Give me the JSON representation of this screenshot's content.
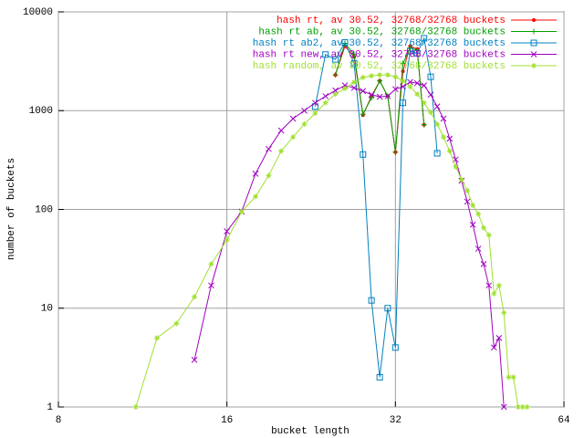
{
  "chart_data": {
    "type": "line",
    "xlabel": "bucket length",
    "ylabel": "number of buckets",
    "xscale": "log",
    "yscale": "log",
    "grid": true,
    "legend": "upper right",
    "xlim": [
      8,
      64
    ],
    "xticks": [
      8,
      16,
      32,
      64
    ],
    "ylim": [
      1,
      10000
    ],
    "yticks": [
      1,
      10,
      100,
      1000,
      10000
    ],
    "series": [
      {
        "name": "hash rt, av 30.52, 32768/32768 buckets",
        "color": "#ff0000",
        "marker": "dot",
        "x": [
          25,
          26,
          27,
          28,
          29,
          30,
          31,
          32,
          33,
          34,
          35,
          36
        ],
        "values": [
          2300,
          4500,
          3500,
          900,
          1400,
          2000,
          1400,
          380,
          2500,
          4500,
          4200,
          720
        ]
      },
      {
        "name": "hash rt ab, av 30.52, 32768/32768 buckets",
        "color": "#00a000",
        "marker": "plus",
        "x": [
          25,
          26,
          27,
          28,
          29,
          30,
          31,
          32,
          33,
          34,
          35,
          36
        ],
        "values": [
          2300,
          4800,
          3700,
          920,
          1350,
          2000,
          1400,
          380,
          3000,
          4300,
          4100,
          720
        ]
      },
      {
        "name": "hash rt ab2, av 30.52, 32768/32768 buckets",
        "color": "#0080c0",
        "marker": "square",
        "x": [
          23,
          24,
          25,
          26,
          27,
          28,
          29,
          30,
          31,
          32,
          33,
          34,
          35,
          36,
          37,
          38
        ],
        "values": [
          1100,
          3700,
          3300,
          4900,
          3000,
          360,
          12,
          2,
          10,
          4,
          1200,
          4000,
          3800,
          5400,
          2200,
          370
        ]
      },
      {
        "name": "hash rt new, av 30.52, 32768/32768 buckets",
        "color": "#a000c0",
        "marker": "cross",
        "x": [
          14,
          15,
          16,
          17,
          18,
          19,
          20,
          21,
          22,
          23,
          24,
          25,
          26,
          27,
          28,
          29,
          30,
          31,
          32,
          33,
          34,
          35,
          36,
          37,
          38,
          39,
          40,
          41,
          42,
          43,
          44,
          45,
          46,
          47,
          48,
          49,
          50
        ],
        "values": [
          3,
          17,
          60,
          95,
          230,
          410,
          630,
          830,
          1000,
          1200,
          1400,
          1600,
          1800,
          1700,
          1580,
          1450,
          1380,
          1400,
          1650,
          1750,
          1950,
          1900,
          1800,
          1450,
          1100,
          830,
          520,
          320,
          195,
          120,
          70,
          40,
          28,
          17,
          4,
          5,
          1
        ]
      },
      {
        "name": "hash random, av 30.52, 32768/32768 buckets",
        "color": "#a0e030",
        "marker": "star",
        "x": [
          11,
          12,
          13,
          14,
          15,
          16,
          17,
          18,
          19,
          20,
          21,
          22,
          23,
          24,
          25,
          26,
          27,
          28,
          29,
          30,
          31,
          32,
          33,
          34,
          35,
          36,
          37,
          38,
          39,
          40,
          41,
          42,
          43,
          44,
          45,
          46,
          47,
          48,
          49,
          50,
          51,
          52,
          53,
          54,
          55
        ],
        "values": [
          1,
          5,
          7,
          13,
          28,
          49,
          95,
          135,
          220,
          390,
          540,
          730,
          940,
          1200,
          1470,
          1680,
          1940,
          2170,
          2250,
          2300,
          2300,
          2200,
          2000,
          1750,
          1470,
          1200,
          960,
          730,
          540,
          390,
          270,
          200,
          155,
          110,
          90,
          65,
          55,
          14,
          17,
          9,
          2,
          2,
          1,
          1,
          1
        ]
      }
    ]
  }
}
